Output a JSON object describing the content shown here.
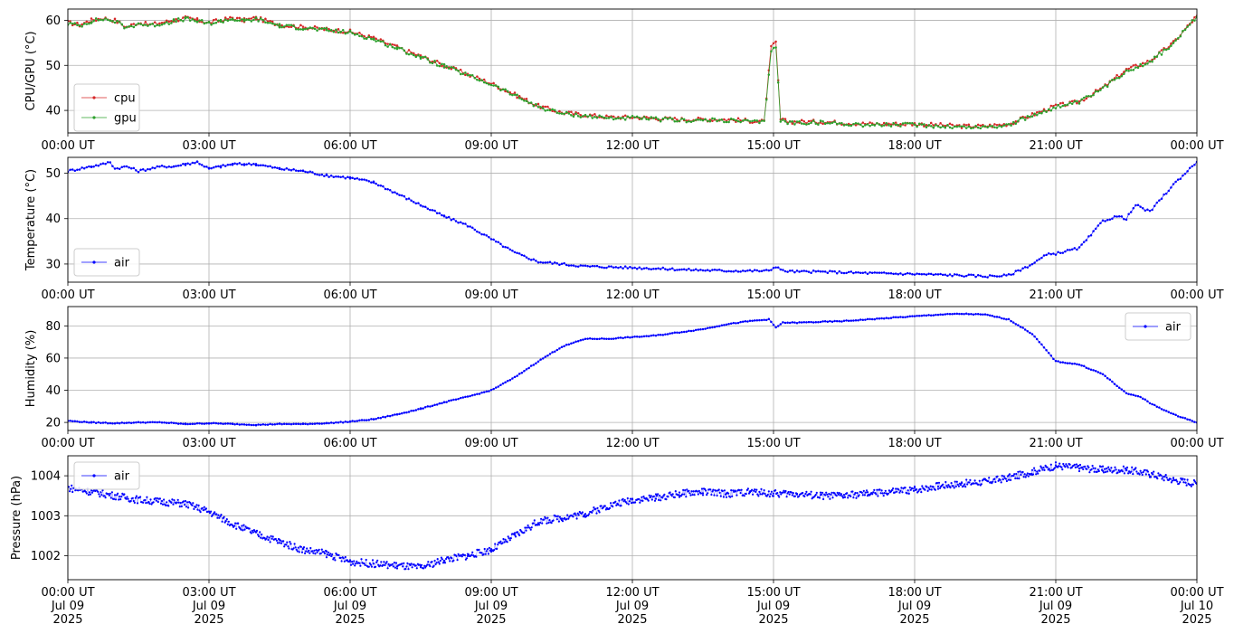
{
  "chart_data": [
    {
      "type": "line",
      "ylabel": "CPU/GPU (°C)",
      "ylim": [
        35,
        62.5
      ],
      "yticks": [
        40,
        50,
        60
      ],
      "legend_position": "center-left",
      "grid": true,
      "x_tick_labels": [
        "00:00 UT",
        "03:00 UT",
        "06:00 UT",
        "09:00 UT",
        "12:00 UT",
        "15:00 UT",
        "18:00 UT",
        "21:00 UT",
        "00:00 UT"
      ],
      "series": [
        {
          "name": "cpu",
          "color": "#d62728",
          "x": [
            0,
            0.25,
            0.5,
            0.75,
            1,
            1.25,
            1.5,
            1.75,
            2,
            2.25,
            2.5,
            2.75,
            3,
            3.25,
            3.5,
            3.75,
            4,
            4.5,
            5,
            5.5,
            6,
            6.5,
            7,
            7.5,
            8,
            8.5,
            9,
            9.5,
            10,
            10.5,
            11,
            11.5,
            12,
            13,
            14,
            14.8,
            14.95,
            15.05,
            15.15,
            15.3,
            15.5,
            16,
            17,
            18,
            19,
            19.5,
            20,
            20.5,
            21,
            21.3,
            21.5,
            22,
            22.5,
            23,
            23.5,
            24
          ],
          "y": [
            59.5,
            59,
            60,
            60.5,
            60,
            58.5,
            59.5,
            59,
            59.5,
            60,
            60.5,
            60,
            59.5,
            60,
            60.5,
            60,
            60.5,
            59,
            58.5,
            58,
            57.5,
            56,
            54,
            52,
            50,
            48,
            46,
            43.5,
            41,
            39.5,
            39,
            38.5,
            38.5,
            38,
            38,
            37.5,
            54,
            55,
            38,
            37.5,
            37.5,
            37.5,
            37,
            37,
            36.5,
            36.5,
            37,
            39,
            41,
            41.5,
            42,
            45,
            49,
            51,
            55,
            61
          ]
        },
        {
          "name": "gpu",
          "color": "#2ca02c",
          "x": [
            0,
            0.25,
            0.5,
            0.75,
            1,
            1.25,
            1.5,
            1.75,
            2,
            2.25,
            2.5,
            2.75,
            3,
            3.25,
            3.5,
            3.75,
            4,
            4.5,
            5,
            5.5,
            6,
            6.5,
            7,
            7.5,
            8,
            8.5,
            9,
            9.5,
            10,
            10.5,
            11,
            11.5,
            12,
            13,
            14,
            14.8,
            14.95,
            15.05,
            15.15,
            15.3,
            15.5,
            16,
            17,
            18,
            19,
            19.5,
            20,
            20.5,
            21,
            21.3,
            21.5,
            22,
            22.5,
            23,
            23.5,
            24
          ],
          "y": [
            59.3,
            58.8,
            59.8,
            60.3,
            59.8,
            58.3,
            59.3,
            58.8,
            59.3,
            59.8,
            60.3,
            59.8,
            59.3,
            59.8,
            60.3,
            59.8,
            60.3,
            58.8,
            58.3,
            57.8,
            57.3,
            55.8,
            53.8,
            51.8,
            49.8,
            47.8,
            45.8,
            43.3,
            40.8,
            39.3,
            38.8,
            38.3,
            38.3,
            37.8,
            37.8,
            37.3,
            53.5,
            54,
            37.8,
            37.3,
            37.3,
            37.3,
            36.8,
            36.8,
            36.3,
            36.3,
            36.8,
            38.8,
            40.8,
            41.3,
            41.8,
            44.8,
            48.8,
            50.8,
            54.8,
            60.8
          ]
        }
      ]
    },
    {
      "type": "line",
      "ylabel": "Temperature (°C)",
      "ylim": [
        26,
        53.5
      ],
      "yticks": [
        30,
        40,
        50
      ],
      "legend_position": "lower-left",
      "grid": true,
      "x_tick_labels": [
        "00:00 UT",
        "03:00 UT",
        "06:00 UT",
        "09:00 UT",
        "12:00 UT",
        "15:00 UT",
        "18:00 UT",
        "21:00 UT",
        "00:00 UT"
      ],
      "series": [
        {
          "name": "air",
          "color": "#0000ff",
          "x": [
            0,
            0.25,
            0.5,
            0.75,
            0.9,
            1,
            1.25,
            1.5,
            1.75,
            2,
            2.25,
            2.5,
            2.75,
            3,
            3.25,
            3.5,
            3.75,
            4,
            4.5,
            5,
            5.5,
            6,
            6.5,
            7,
            7.5,
            8,
            8.5,
            9,
            9.5,
            10,
            10.5,
            11,
            12,
            13,
            14,
            14.9,
            15.05,
            15.2,
            15.5,
            16,
            17,
            18,
            19,
            19.5,
            20,
            20.5,
            20.8,
            21,
            21.5,
            21.8,
            22,
            22.3,
            22.5,
            22.7,
            22.8,
            23,
            23.5,
            24
          ],
          "y": [
            50.5,
            51,
            51.5,
            52,
            52.5,
            51,
            51.5,
            50.5,
            51,
            51.5,
            51.5,
            52,
            52.5,
            51,
            51.5,
            52,
            52,
            52,
            51,
            50.5,
            49.5,
            49,
            48,
            45.5,
            43,
            40.5,
            38.5,
            35.5,
            32.5,
            30.5,
            30,
            29.5,
            29.2,
            28.8,
            28.5,
            28.5,
            29.5,
            28.5,
            28.3,
            28.3,
            28,
            27.8,
            27.5,
            27.3,
            27.5,
            30,
            32,
            32.3,
            33.5,
            37,
            39.5,
            40.5,
            40,
            43,
            42.5,
            41.5,
            47.5,
            52.5
          ]
        }
      ]
    },
    {
      "type": "line",
      "ylabel": "Humidity (%)",
      "ylim": [
        15,
        92
      ],
      "yticks": [
        20,
        40,
        60,
        80
      ],
      "legend_position": "top-right",
      "grid": true,
      "x_tick_labels": [
        "00:00 UT",
        "03:00 UT",
        "06:00 UT",
        "09:00 UT",
        "12:00 UT",
        "15:00 UT",
        "18:00 UT",
        "21:00 UT",
        "00:00 UT"
      ],
      "series": [
        {
          "name": "air",
          "color": "#0000ff",
          "x": [
            0,
            0.5,
            1,
            1.5,
            2,
            2.5,
            3,
            3.5,
            4,
            4.5,
            5,
            5.5,
            6,
            6.5,
            7,
            7.5,
            8,
            8.5,
            9,
            9.5,
            10,
            10.5,
            11,
            11.5,
            12,
            12.5,
            13,
            13.5,
            14,
            14.5,
            14.9,
            15.05,
            15.2,
            15.5,
            16,
            16.5,
            17,
            17.5,
            18,
            18.5,
            19,
            19.5,
            20,
            20.5,
            21,
            21.5,
            22,
            22.5,
            22.8,
            23,
            23.5,
            24
          ],
          "y": [
            21,
            20,
            19.5,
            20,
            20,
            19,
            19.5,
            19,
            18.5,
            19,
            19,
            19.5,
            20.5,
            22,
            25,
            28.5,
            32.5,
            36,
            40,
            48,
            58,
            67,
            72,
            72,
            73,
            74,
            76,
            78,
            81,
            83,
            84,
            79,
            82,
            82,
            82.5,
            83,
            84,
            85,
            86,
            87,
            87.5,
            87,
            84,
            75,
            58,
            56,
            50,
            38,
            36,
            32,
            25,
            20
          ]
        }
      ]
    },
    {
      "type": "scatter",
      "ylabel": "Pressure (hPa)",
      "ylim": [
        1001.4,
        1004.5
      ],
      "yticks": [
        1002,
        1003,
        1004
      ],
      "yticklabels": [
        "1002",
        "1003",
        "1004"
      ],
      "legend_position": "top-left",
      "grid": true,
      "x_tick_labels": [
        [
          "00:00 UT",
          "Jul 09",
          "2025"
        ],
        [
          "03:00 UT",
          "Jul 09",
          "2025"
        ],
        [
          "06:00 UT",
          "Jul 09",
          "2025"
        ],
        [
          "09:00 UT",
          "Jul 09",
          "2025"
        ],
        [
          "12:00 UT",
          "Jul 09",
          "2025"
        ],
        [
          "15:00 UT",
          "Jul 09",
          "2025"
        ],
        [
          "18:00 UT",
          "Jul 09",
          "2025"
        ],
        [
          "21:00 UT",
          "Jul 09",
          "2025"
        ],
        [
          "00:00 UT",
          "Jul 10",
          "2025"
        ]
      ],
      "series": [
        {
          "name": "air",
          "color": "#0000ff",
          "x": [
            0,
            0.5,
            1,
            1.5,
            2,
            2.5,
            3,
            3.5,
            4,
            4.5,
            5,
            5.5,
            6,
            6.5,
            7,
            7.5,
            8,
            8.5,
            9,
            9.5,
            10,
            10.5,
            11,
            11.5,
            12,
            12.5,
            13,
            13.5,
            14,
            14.5,
            15,
            15.5,
            16,
            16.5,
            17,
            17.5,
            18,
            18.5,
            19,
            19.5,
            20,
            20.5,
            21,
            21.5,
            22,
            22.5,
            23,
            23.5,
            24
          ],
          "y": [
            1003.7,
            1003.6,
            1003.5,
            1003.4,
            1003.35,
            1003.3,
            1003.1,
            1002.8,
            1002.55,
            1002.35,
            1002.15,
            1002.05,
            1001.85,
            1001.8,
            1001.75,
            1001.7,
            1001.9,
            1002.0,
            1002.15,
            1002.5,
            1002.85,
            1002.95,
            1003.05,
            1003.25,
            1003.4,
            1003.45,
            1003.55,
            1003.6,
            1003.55,
            1003.6,
            1003.55,
            1003.55,
            1003.5,
            1003.5,
            1003.55,
            1003.6,
            1003.65,
            1003.75,
            1003.8,
            1003.85,
            1003.95,
            1004.1,
            1004.25,
            1004.2,
            1004.15,
            1004.15,
            1004.05,
            1003.9,
            1003.8
          ]
        }
      ]
    }
  ]
}
